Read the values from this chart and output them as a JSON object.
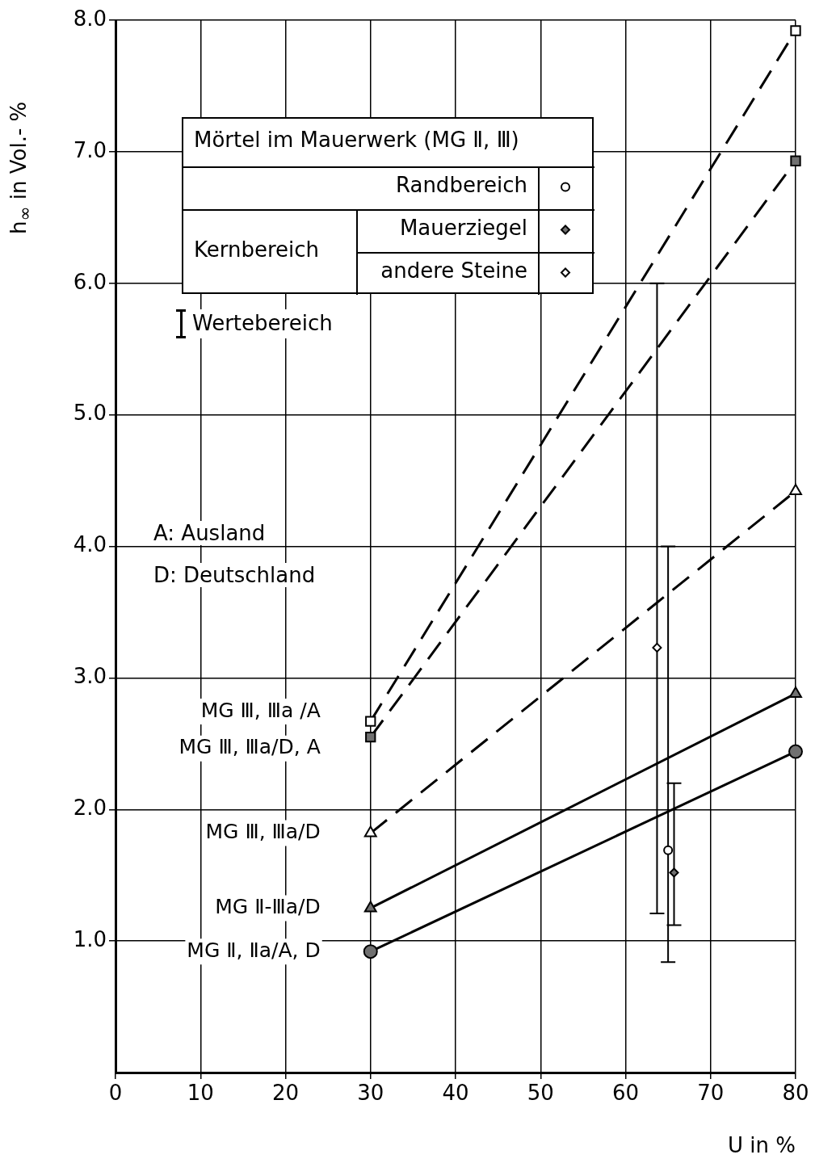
{
  "chart_data": {
    "type": "line",
    "xlabel": "U in %",
    "ylabel": "h$_{∞}$ in Vol.- %",
    "legend_title": "Mörtel im Mauerwerk (MG Ⅱ, Ⅲ)",
    "xlim": [
      0,
      80
    ],
    "xticks": [
      0,
      10,
      20,
      30,
      40,
      50,
      60,
      70,
      80
    ],
    "ylim": [
      0,
      8
    ],
    "yticks": [
      {
        "value": 1,
        "label": "1.0"
      },
      {
        "value": 2,
        "label": "2.0"
      },
      {
        "value": 3,
        "label": "3.0"
      },
      {
        "value": 4,
        "label": "4.0"
      },
      {
        "value": 5,
        "label": "5.0"
      },
      {
        "value": 6,
        "label": "6.0"
      },
      {
        "value": 7,
        "label": "7.0"
      },
      {
        "value": 8,
        "label": "8.0"
      }
    ],
    "grid": true,
    "legend": "top left",
    "series": [
      {
        "name": "MG Ⅲ, Ⅲa /A",
        "type": "line",
        "x": [
          30,
          80
        ],
        "values": [
          2.67,
          7.92
        ],
        "color": "#000000",
        "colors": [
          "#ffffff",
          "#ffffff"
        ],
        "marker": "square",
        "line_style": "dashed"
      },
      {
        "name": "MG Ⅲ, Ⅲa/D, A",
        "type": "line",
        "x": [
          30,
          80
        ],
        "values": [
          2.55,
          6.93
        ],
        "color": "#000000",
        "colors": [
          "#707070",
          "#707070"
        ],
        "marker": "square",
        "line_style": "dashed"
      },
      {
        "name": "MG Ⅲ, Ⅲa/D",
        "type": "line",
        "x": [
          30,
          80
        ],
        "values": [
          1.82,
          4.42
        ],
        "color": "#000000",
        "colors": [
          "#ffffff",
          "#ffffff"
        ],
        "marker": "triangle",
        "line_style": "dashed"
      },
      {
        "name": "MG Ⅱ-Ⅲa/D",
        "type": "line",
        "x": [
          30,
          80
        ],
        "values": [
          1.25,
          2.88
        ],
        "color": "#000000",
        "colors": [
          "#707070",
          "#707070"
        ],
        "marker": "triangle",
        "line_style": "solid"
      },
      {
        "name": "MG Ⅱ, Ⅱa/A, D",
        "type": "line",
        "x": [
          30,
          80
        ],
        "values": [
          0.92,
          2.44
        ],
        "color": "#000000",
        "colors": [
          "#707070",
          "#707070"
        ],
        "marker": "circle",
        "line_style": "solid"
      },
      {
        "name": "Randbereich",
        "type": "scatter",
        "x": [
          65.0
        ],
        "values": [
          1.69
        ],
        "errors": [
          [
            0.84,
            4.0
          ]
        ],
        "color": "#000000",
        "colors": [
          "#ffffff"
        ],
        "marker": "circle"
      },
      {
        "name": "Mauerziegel",
        "type": "scatter",
        "x": [
          65.7
        ],
        "values": [
          1.52
        ],
        "errors": [
          [
            1.12,
            2.2
          ]
        ],
        "color": "#000000",
        "colors": [
          "#707070"
        ],
        "marker": "diamond"
      },
      {
        "name": "andere Steine",
        "type": "scatter",
        "x": [
          63.7
        ],
        "values": [
          3.23
        ],
        "errors": [
          [
            1.21,
            6.0
          ]
        ],
        "color": "#000000",
        "colors": [
          "#ffffff"
        ],
        "marker": "diamond"
      }
    ],
    "annotations": [
      "Kernbereich",
      "Wertebereich",
      "A: Ausland",
      "D: Deutschland"
    ]
  }
}
